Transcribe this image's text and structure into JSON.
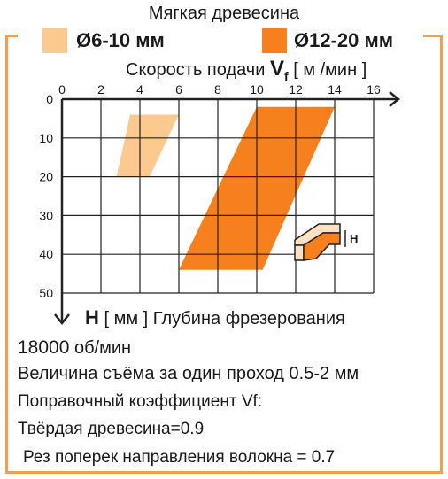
{
  "header": {
    "title": "Мягкая древесина"
  },
  "legend": [
    {
      "label": "Ø6-10",
      "unit": "мм",
      "color": "#fcc98e"
    },
    {
      "label": "Ø12-20",
      "unit": "мм",
      "color": "#f7801e"
    }
  ],
  "axis_x": {
    "label": "Скорость подачи",
    "symbol": "V",
    "symbol_sub": "f",
    "unit": "[ м /мин ]"
  },
  "axis_y": {
    "symbol": "H",
    "unit": "[ мм ]",
    "label": "Глубина фрезерования"
  },
  "inset_label": "H",
  "notes": {
    "rpm_value": "18000",
    "rpm_unit": "об/мин",
    "removal": "Величина съёма за один проход 0.5-2 мм",
    "coef_label": "Поправочный коэффициент",
    "coef_symbol": "Vf:",
    "hardwood_label": "Твёрдая древесина",
    "hardwood_value": "=0.9",
    "crossgrain": "Рез поперек направления волокна = 0.7"
  },
  "chart_data": {
    "type": "area",
    "title": "Мягкая древесина",
    "xlabel": "Скорость подачи Vf [м /мин]",
    "ylabel": "H [мм] Глубина фрезерования",
    "xlim": [
      0,
      16
    ],
    "ylim": [
      0,
      50
    ],
    "y_inverted": true,
    "x_ticks": [
      0,
      2,
      4,
      6,
      8,
      10,
      12,
      14,
      16
    ],
    "y_ticks": [
      0,
      10,
      20,
      30,
      40,
      50
    ],
    "grid": true,
    "legend_position": "top",
    "series": [
      {
        "name": "Ø6-10 мм",
        "color": "#fcc98e",
        "polygon": [
          [
            3.5,
            4
          ],
          [
            6,
            4
          ],
          [
            4.5,
            20
          ],
          [
            2.8,
            20
          ]
        ]
      },
      {
        "name": "Ø12-20 мм",
        "color": "#f7801e",
        "polygon": [
          [
            10,
            2
          ],
          [
            14,
            2
          ],
          [
            10.3,
            44
          ],
          [
            6,
            44
          ]
        ]
      }
    ]
  }
}
